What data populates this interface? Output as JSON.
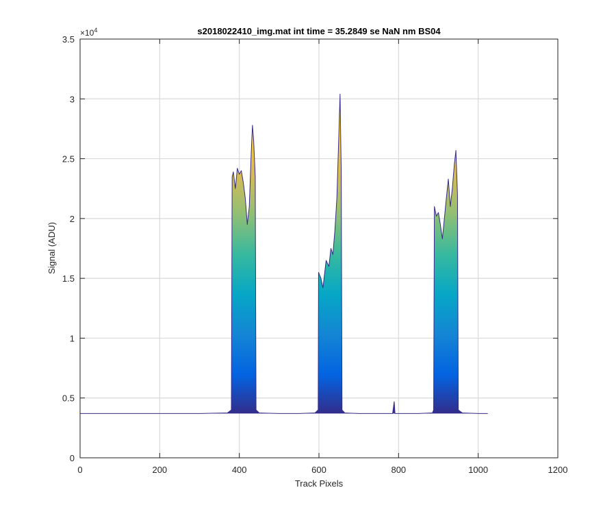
{
  "chart_data": {
    "type": "area",
    "title": "s2018022410_img.mat int time = 35.2849 se  NaN nm BS04",
    "xlabel": "Track Pixels",
    "ylabel": "Signal (ADU)",
    "xlim": [
      0,
      1200
    ],
    "ylim": [
      0,
      35000
    ],
    "xticks": [
      0,
      200,
      400,
      600,
      800,
      1000,
      1200
    ],
    "xtick_labels": [
      "0",
      "200",
      "400",
      "600",
      "800",
      "1000",
      "1200"
    ],
    "yticks": [
      0,
      5000,
      10000,
      15000,
      20000,
      25000,
      30000,
      35000
    ],
    "ytick_labels": [
      "0",
      "0.5",
      "1",
      "1.5",
      "2",
      "2.5",
      "3",
      "3.5"
    ],
    "y_exponent_base": "×10",
    "y_exponent_power": "4",
    "grid": true,
    "colormap": [
      "#352a87",
      "#0363e1",
      "#1485d4",
      "#06a7c6",
      "#38b99e",
      "#92bf73",
      "#d9ba56",
      "#fcce2e",
      "#f9fb0e"
    ],
    "baseline": 3700,
    "series": [
      {
        "values": [
          [
            0,
            3700
          ],
          [
            100,
            3705
          ],
          [
            200,
            3700
          ],
          [
            300,
            3700
          ],
          [
            370,
            3750
          ],
          [
            380,
            4000
          ],
          [
            382,
            23500
          ],
          [
            385,
            23900
          ],
          [
            390,
            22500
          ],
          [
            395,
            24200
          ],
          [
            400,
            23700
          ],
          [
            405,
            24000
          ],
          [
            410,
            23000
          ],
          [
            415,
            21700
          ],
          [
            420,
            19500
          ],
          [
            425,
            21000
          ],
          [
            430,
            25600
          ],
          [
            433,
            27800
          ],
          [
            436,
            26500
          ],
          [
            440,
            23500
          ],
          [
            442,
            4000
          ],
          [
            450,
            3750
          ],
          [
            500,
            3700
          ],
          [
            550,
            3700
          ],
          [
            590,
            3750
          ],
          [
            598,
            4000
          ],
          [
            599,
            15500
          ],
          [
            605,
            15000
          ],
          [
            610,
            14200
          ],
          [
            618,
            16500
          ],
          [
            625,
            16000
          ],
          [
            630,
            17500
          ],
          [
            635,
            17000
          ],
          [
            640,
            19000
          ],
          [
            645,
            21700
          ],
          [
            650,
            27000
          ],
          [
            653,
            30400
          ],
          [
            656,
            24000
          ],
          [
            658,
            4000
          ],
          [
            665,
            3750
          ],
          [
            700,
            3700
          ],
          [
            785,
            3700
          ],
          [
            789,
            4700
          ],
          [
            791,
            3700
          ],
          [
            850,
            3700
          ],
          [
            885,
            3750
          ],
          [
            888,
            4000
          ],
          [
            890,
            21000
          ],
          [
            895,
            20200
          ],
          [
            900,
            20500
          ],
          [
            905,
            19500
          ],
          [
            910,
            18300
          ],
          [
            915,
            20000
          ],
          [
            920,
            21700
          ],
          [
            925,
            23300
          ],
          [
            930,
            21000
          ],
          [
            935,
            22500
          ],
          [
            940,
            24500
          ],
          [
            944,
            25700
          ],
          [
            948,
            22000
          ],
          [
            950,
            4000
          ],
          [
            960,
            3750
          ],
          [
            1000,
            3700
          ],
          [
            1024,
            3700
          ]
        ]
      }
    ]
  }
}
